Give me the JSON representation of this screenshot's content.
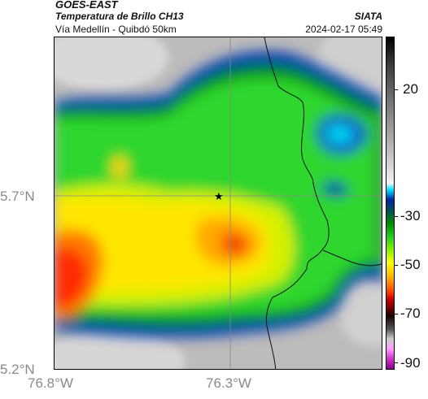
{
  "header": {
    "satellite": "GOES-EAST",
    "product": "Temperatura de Brillo CH13",
    "organization": "SIATA",
    "area": "Vía Medellín - Quibdó 50km",
    "timestamp": "2024-02-17 05:49"
  },
  "axes": {
    "lat_ticks": [
      "5.7°N",
      "5.2°N"
    ],
    "lon_ticks": [
      "76.8°W",
      "76.3°W"
    ]
  },
  "colorbar": {
    "ticks": [
      "20",
      "-30",
      "-50",
      "-70",
      "-90"
    ]
  },
  "colors": {
    "cold_cloud_top": "#ff2a00",
    "clear_sky": "#bdbdbd",
    "mid_cloud": "#2fd62f",
    "high_cloud": "#f0f000"
  }
}
